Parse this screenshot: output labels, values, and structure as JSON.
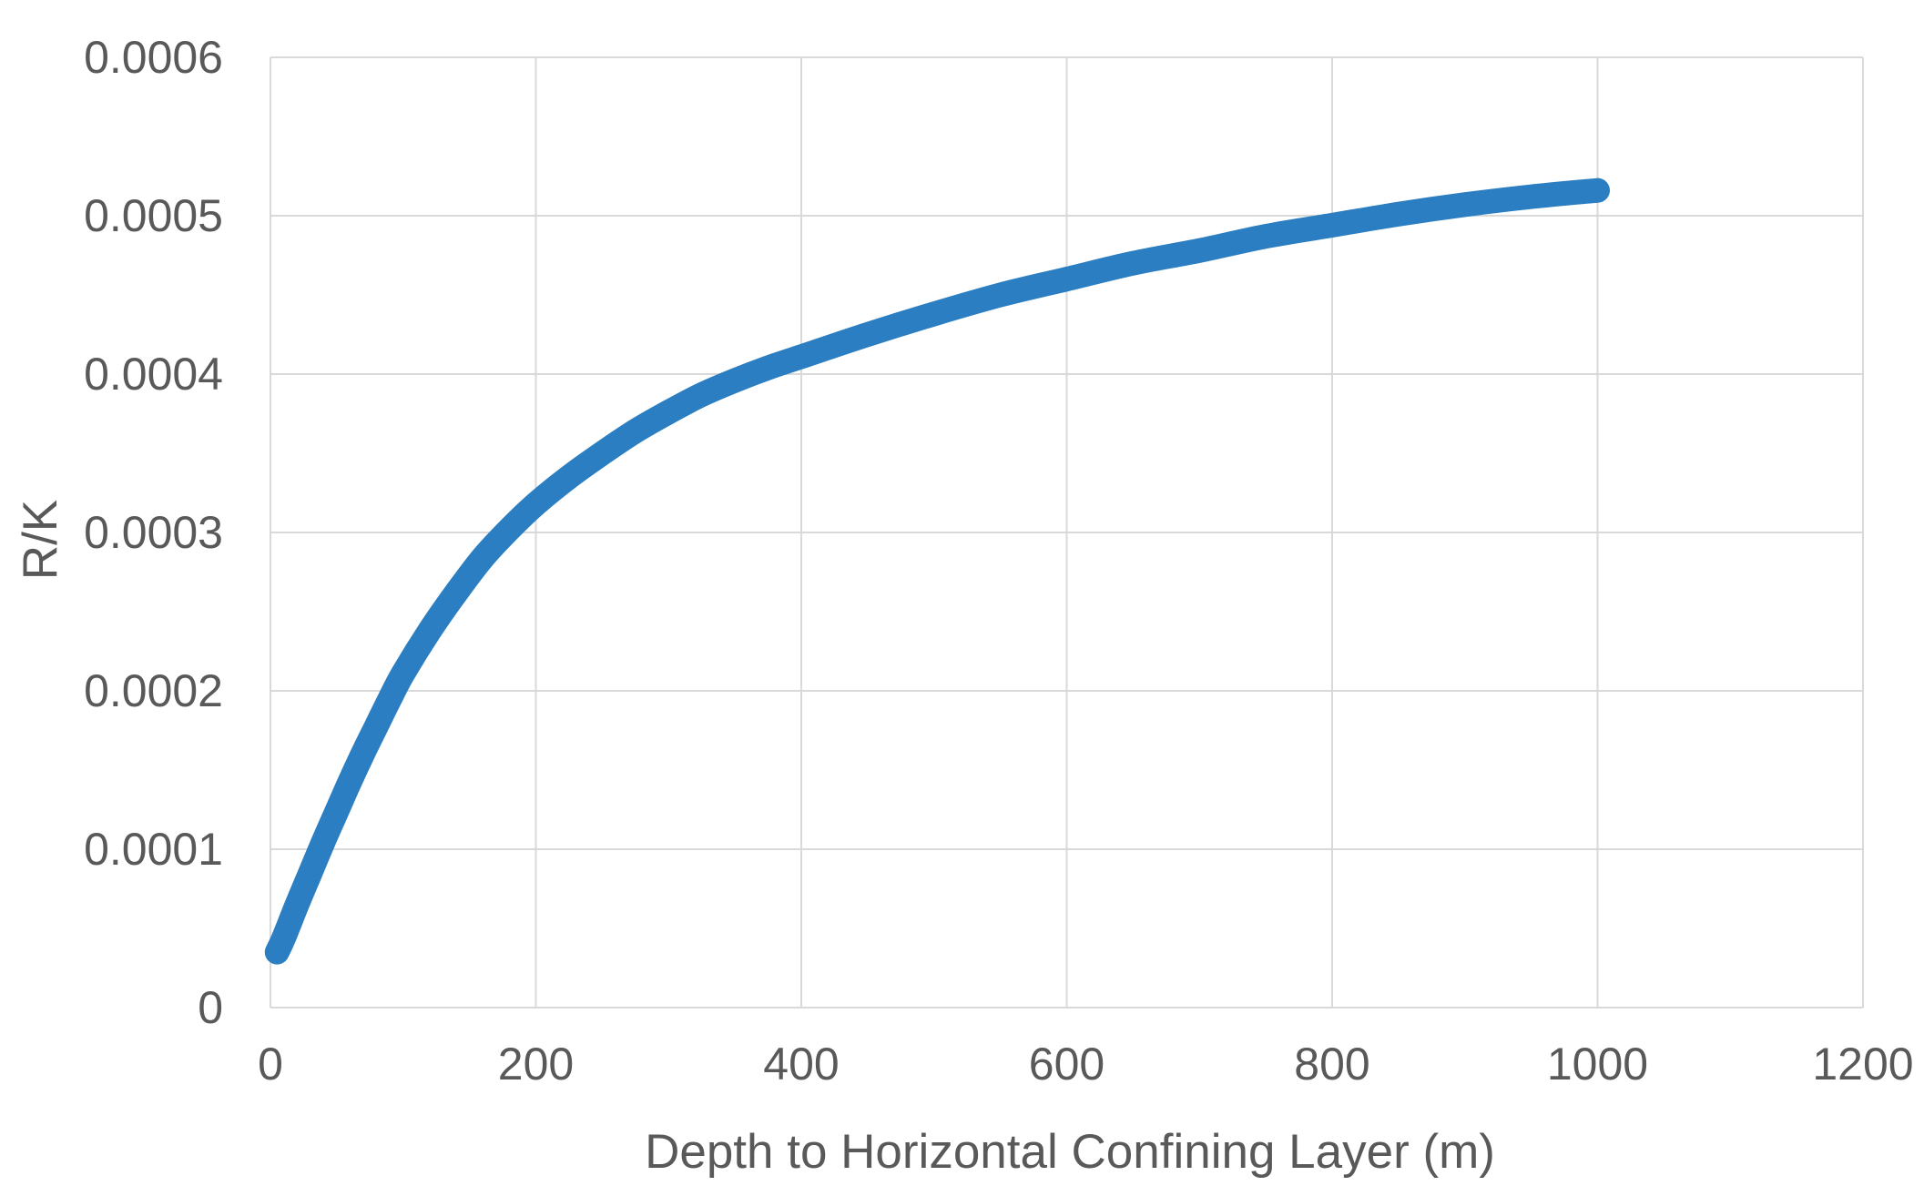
{
  "chart_data": {
    "type": "scatter",
    "title": "",
    "xlabel": "Depth to Horizontal Confining Layer (m)",
    "ylabel": "R/K",
    "xlim": [
      0,
      1200
    ],
    "ylim": [
      0,
      0.0006
    ],
    "x_ticks": [
      "0",
      "200",
      "400",
      "600",
      "800",
      "1000",
      "1200"
    ],
    "y_ticks": [
      "0",
      "0.0001",
      "0.0002",
      "0.0003",
      "0.0004",
      "0.0005",
      "0.0006"
    ],
    "grid": true,
    "legend": "none",
    "series_color": "#2a7ec1",
    "grid_color": "#d9d9d9",
    "series": [
      {
        "x": [
          5,
          10,
          20,
          30,
          40,
          50,
          60,
          70,
          80,
          90,
          100,
          120,
          140,
          160,
          180,
          200,
          225,
          250,
          275,
          300,
          325,
          350,
          375,
          400,
          450,
          500,
          550,
          600,
          650,
          700,
          750,
          800,
          850,
          900,
          950,
          1000
        ],
        "y": [
          3.5e-05,
          4.4e-05,
          6.5e-05,
          8.5e-05,
          0.000105,
          0.000124,
          0.000143,
          0.000161,
          0.000178,
          0.000195,
          0.000211,
          0.000238,
          0.000262,
          0.000284,
          0.000302,
          0.000318,
          0.000335,
          0.00035,
          0.000364,
          0.000376,
          0.000387,
          0.000396,
          0.000404,
          0.000411,
          0.000425,
          0.000438,
          0.00045,
          0.00046,
          0.00047,
          0.000478,
          0.000487,
          0.000494,
          0.000501,
          0.000507,
          0.000512,
          0.000516
        ]
      }
    ]
  }
}
